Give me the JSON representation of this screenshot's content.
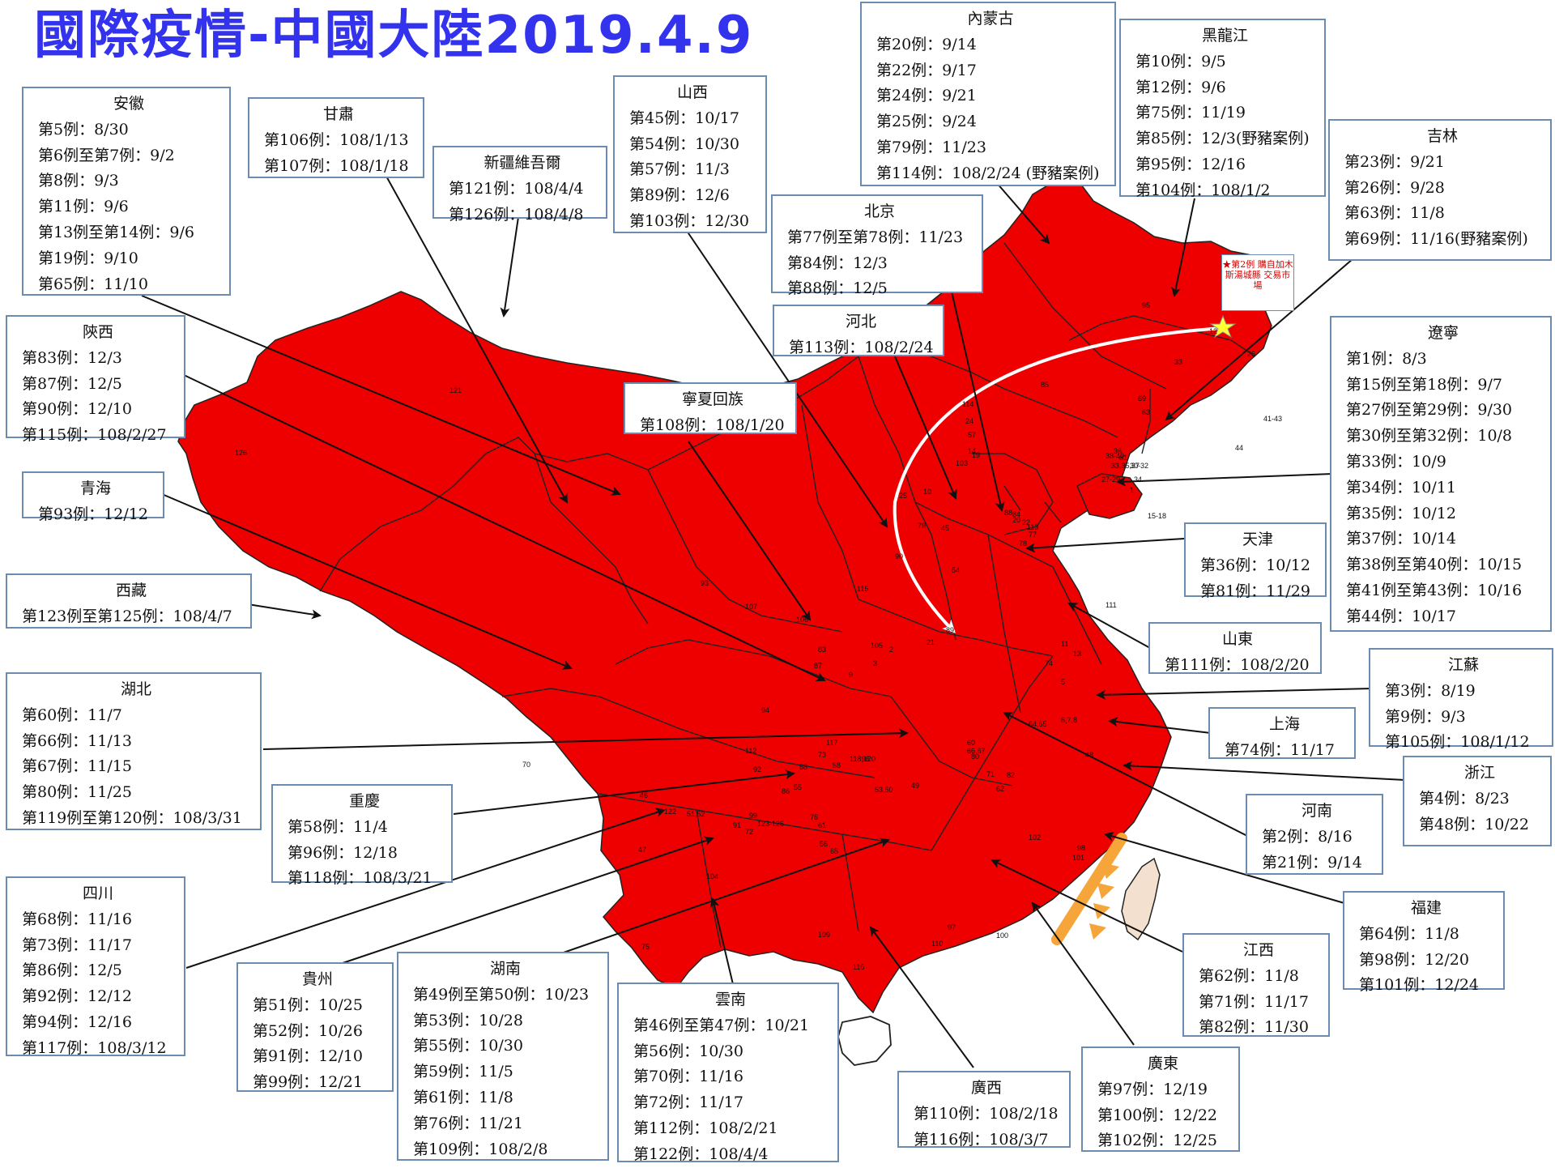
{
  "title": "國際疫情-中國大陸2019.4.9",
  "note_text": "★第2例 購自加木 斯湯城縣 交易市場",
  "colors": {
    "map_fill": "#ee0000",
    "title": "#3333ee",
    "box_border": "#6b8bb0",
    "arrow": "#111111",
    "arrow_route": "#ffffff",
    "alert_arc": "#f6a53a",
    "taiwan": "#f3e0cf"
  },
  "regions": [
    {
      "name": "安徽",
      "cases": [
        "第5例：8/30",
        "第6例至第7例：9/2",
        "第8例：9/3",
        "第11例：9/6",
        "第13例至第14例：9/6",
        "第19例：9/10",
        "第65例：11/10"
      ]
    },
    {
      "name": "甘肅",
      "cases": [
        "第106例：108/1/13",
        "第107例：108/1/18"
      ]
    },
    {
      "name": "新疆維吾爾",
      "cases": [
        "第121例：108/4/4",
        "第126例：108/4/8"
      ]
    },
    {
      "name": "山西",
      "cases": [
        "第45例：10/17",
        "第54例：10/30",
        "第57例：11/3",
        "第89例：12/6",
        "第103例：12/30"
      ]
    },
    {
      "name": "內蒙古",
      "cases": [
        "第20例：9/14",
        "第22例：9/17",
        "第24例：9/21",
        "第25例：9/24",
        "第79例：11/23",
        "第114例：108/2/24 (野豬案例)"
      ]
    },
    {
      "name": "黑龍江",
      "cases": [
        "第10例：9/5",
        "第12例：9/6",
        "第75例：11/19",
        "第85例：12/3(野豬案例)",
        "第95例：12/16",
        "第104例：108/1/2"
      ]
    },
    {
      "name": "吉林",
      "cases": [
        "第23例：9/21",
        "第26例：9/28",
        "第63例：11/8",
        "第69例：11/16(野豬案例)"
      ]
    },
    {
      "name": "北京",
      "cases": [
        "第77例至第78例：11/23",
        "第84例：12/3",
        "第88例：12/5"
      ]
    },
    {
      "name": "河北",
      "cases": [
        "第113例：108/2/24"
      ]
    },
    {
      "name": "陝西",
      "cases": [
        "第83例：12/3",
        "第87例：12/5",
        "第90例：12/10",
        "第115例：108/2/27"
      ]
    },
    {
      "name": "寧夏回族",
      "cases": [
        "第108例：108/1/20"
      ]
    },
    {
      "name": "遼寧",
      "cases": [
        "第1例：8/3",
        "第15例至第18例：9/7",
        "第27例至第29例：9/30",
        "第30例至第32例：10/8",
        "第33例：10/9",
        "第34例：10/11",
        "第35例：10/12",
        "第37例：10/14",
        "第38例至第40例：10/15",
        "第41例至第43例：10/16",
        "第44例：10/17"
      ]
    },
    {
      "name": "青海",
      "cases": [
        "第93例：12/12"
      ]
    },
    {
      "name": "天津",
      "cases": [
        "第36例：10/12",
        "第81例：11/29"
      ]
    },
    {
      "name": "西藏",
      "cases": [
        "第123例至第125例：108/4/7"
      ]
    },
    {
      "name": "山東",
      "cases": [
        "第111例：108/2/20"
      ]
    },
    {
      "name": "江蘇",
      "cases": [
        "第3例：8/19",
        "第9例：9/3",
        "第105例：108/1/12"
      ]
    },
    {
      "name": "湖北",
      "cases": [
        "第60例：11/7",
        "第66例：11/13",
        "第67例：11/15",
        "第80例：11/25",
        "第119例至第120例：108/3/31"
      ]
    },
    {
      "name": "上海",
      "cases": [
        "第74例：11/17"
      ]
    },
    {
      "name": "浙江",
      "cases": [
        "第4例：8/23",
        "第48例：10/22"
      ]
    },
    {
      "name": "重慶",
      "cases": [
        "第58例：11/4",
        "第96例：12/18",
        "第118例：108/3/21"
      ]
    },
    {
      "name": "河南",
      "cases": [
        "第2例：8/16",
        "第21例：9/14"
      ]
    },
    {
      "name": "四川",
      "cases": [
        "第68例：11/16",
        "第73例：11/17",
        "第86例：12/5",
        "第92例：12/12",
        "第94例：12/16",
        "第117例：108/3/12"
      ]
    },
    {
      "name": "福建",
      "cases": [
        "第64例：11/8",
        "第98例：12/20",
        "第101例：12/24"
      ]
    },
    {
      "name": "貴州",
      "cases": [
        "第51例：10/25",
        "第52例：10/26",
        "第91例：12/10",
        "第99例：12/21"
      ]
    },
    {
      "name": "湖南",
      "cases": [
        "第49例至第50例：10/23",
        "第53例：10/28",
        "第55例：10/30",
        "第59例：11/5",
        "第61例：11/8",
        "第76例：11/21",
        "第109例：108/2/8"
      ]
    },
    {
      "name": "雲南",
      "cases": [
        "第46例至第47例：10/21",
        "第56例：10/30",
        "第70例：11/16",
        "第72例：11/17",
        "第112例：108/2/21",
        "第122例：108/4/4"
      ]
    },
    {
      "name": "江西",
      "cases": [
        "第62例：11/8",
        "第71例：11/17",
        "第82例：11/30"
      ]
    },
    {
      "name": "廣西",
      "cases": [
        "第110例：108/2/18",
        "第116例：108/3/7"
      ]
    },
    {
      "name": "廣東",
      "cases": [
        "第97例：12/19",
        "第100例：12/22",
        "第102例：12/25"
      ]
    }
  ],
  "map_labels": [
    "121",
    "126",
    "93",
    "107",
    "106",
    "83",
    "87",
    "115",
    "90",
    "79",
    "45",
    "25",
    "54",
    "89",
    "21",
    "2",
    "105",
    "3",
    "9",
    "5",
    "6,7,8",
    "64,65",
    "48",
    "98",
    "101",
    "102",
    "100",
    "97",
    "110",
    "116",
    "109",
    "61",
    "76",
    "55",
    "53,50",
    "49",
    "62",
    "71",
    "82",
    "80",
    "60",
    "66,67",
    "117",
    "58",
    "118,120",
    "96",
    "68",
    "73",
    "92",
    "86",
    "94",
    "123-125",
    "122",
    "112",
    "70",
    "46",
    "47",
    "51,52",
    "91",
    "99",
    "72",
    "56",
    "65",
    "104",
    "75",
    "95",
    "12",
    "33",
    "26",
    "63",
    "69",
    "41-43",
    "44",
    "38-40",
    "33,35,37",
    "30-32",
    "27-29",
    "34",
    "1",
    "15-18",
    "36",
    "81",
    "113",
    "77",
    "78",
    "84",
    "88",
    "20",
    "22",
    "114",
    "24",
    "57",
    "103",
    "10",
    "85",
    "14",
    "19",
    "111",
    "11",
    "13",
    "74"
  ]
}
